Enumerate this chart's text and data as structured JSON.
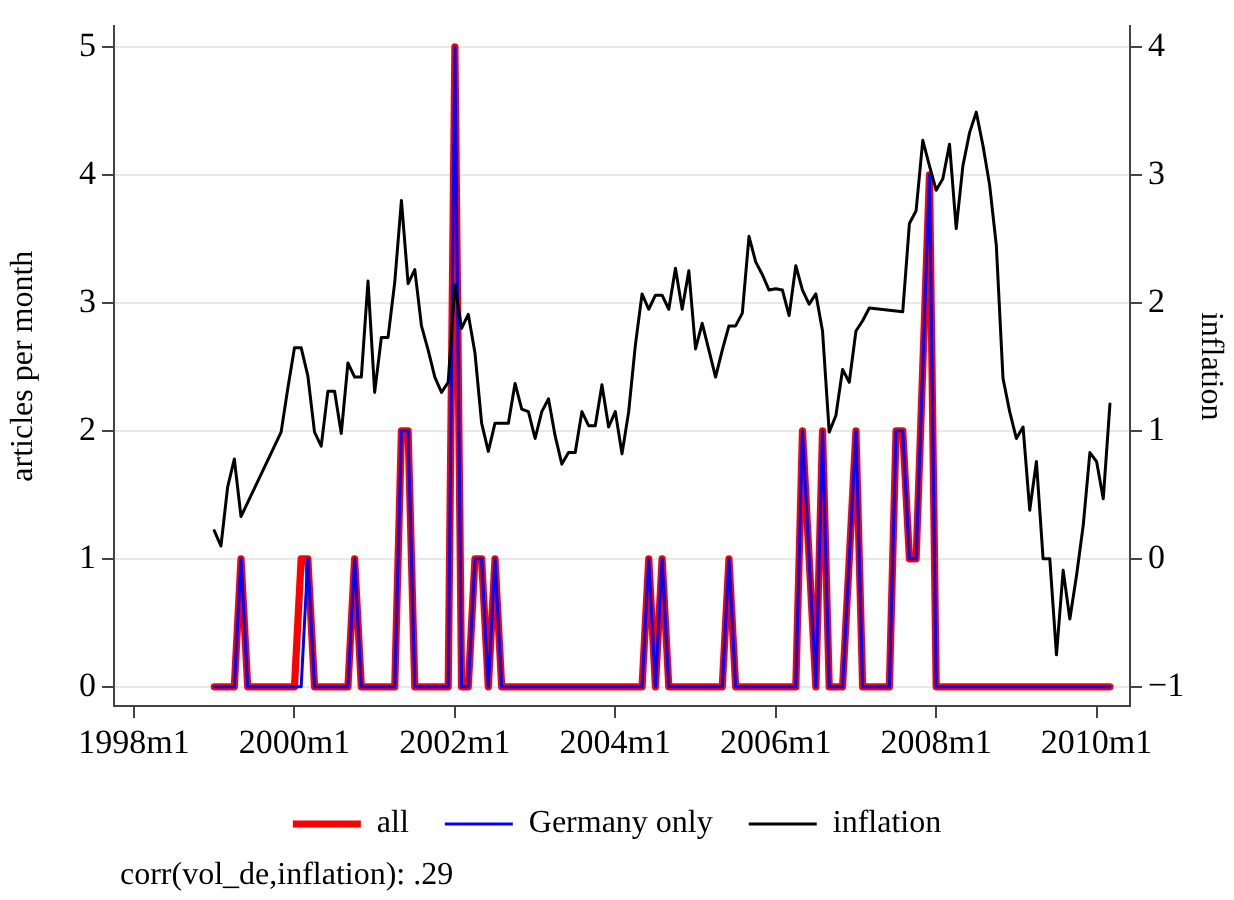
{
  "chart_data": {
    "type": "line",
    "ylabel": "articles per month",
    "y2label": "inflation",
    "x": [
      "1999-01",
      "1999-02",
      "1999-03",
      "1999-04",
      "1999-05",
      "1999-06",
      "1999-07",
      "1999-08",
      "1999-09",
      "1999-10",
      "1999-11",
      "1999-12",
      "2000-01",
      "2000-02",
      "2000-03",
      "2000-04",
      "2000-05",
      "2000-06",
      "2000-07",
      "2000-08",
      "2000-09",
      "2000-10",
      "2000-11",
      "2000-12",
      "2001-01",
      "2001-02",
      "2001-03",
      "2001-04",
      "2001-05",
      "2001-06",
      "2001-07",
      "2001-08",
      "2001-09",
      "2001-10",
      "2001-11",
      "2001-12",
      "2002-01",
      "2002-02",
      "2002-03",
      "2002-04",
      "2002-05",
      "2002-06",
      "2002-07",
      "2002-08",
      "2002-09",
      "2002-10",
      "2002-11",
      "2002-12",
      "2003-01",
      "2003-02",
      "2003-03",
      "2003-04",
      "2003-05",
      "2003-06",
      "2003-07",
      "2003-08",
      "2003-09",
      "2003-10",
      "2003-11",
      "2003-12",
      "2004-01",
      "2004-02",
      "2004-03",
      "2004-04",
      "2004-05",
      "2004-06",
      "2004-07",
      "2004-08",
      "2004-09",
      "2004-10",
      "2004-11",
      "2004-12",
      "2005-01",
      "2005-02",
      "2005-03",
      "2005-04",
      "2005-05",
      "2005-06",
      "2005-07",
      "2005-08",
      "2005-09",
      "2005-10",
      "2005-11",
      "2005-12",
      "2006-01",
      "2006-02",
      "2006-03",
      "2006-04",
      "2006-05",
      "2006-06",
      "2006-07",
      "2006-08",
      "2006-09",
      "2006-10",
      "2006-11",
      "2006-12",
      "2007-01",
      "2007-02",
      "2007-03",
      "2007-04",
      "2007-05",
      "2007-06",
      "2007-07",
      "2007-08",
      "2007-09",
      "2007-10",
      "2007-11",
      "2007-12",
      "2008-01",
      "2008-02",
      "2008-03",
      "2008-04",
      "2008-05",
      "2008-06",
      "2008-07",
      "2008-08",
      "2008-09",
      "2008-10",
      "2008-11",
      "2008-12",
      "2009-01",
      "2009-02",
      "2009-03",
      "2009-04",
      "2009-05",
      "2009-06",
      "2009-07",
      "2009-08",
      "2009-09",
      "2009-10",
      "2009-11",
      "2009-12",
      "2010-01",
      "2010-02",
      "2010-03"
    ],
    "series": [
      {
        "name": "all",
        "color": "#ff0000",
        "values": [
          0,
          0,
          0,
          0,
          1,
          0,
          0,
          0,
          0,
          0,
          0,
          0,
          0,
          1,
          1,
          0,
          0,
          0,
          0,
          0,
          0,
          1,
          0,
          0,
          0,
          0,
          0,
          0,
          2,
          2,
          0,
          0,
          0,
          0,
          0,
          0,
          5,
          0,
          0,
          1,
          1,
          0,
          1,
          0,
          0,
          0,
          0,
          0,
          0,
          0,
          0,
          0,
          0,
          0,
          0,
          0,
          0,
          0,
          0,
          0,
          0,
          0,
          0,
          0,
          0,
          1,
          0,
          1,
          0,
          0,
          0,
          0,
          0,
          0,
          0,
          0,
          0,
          1,
          0,
          0,
          0,
          0,
          0,
          0,
          0,
          0,
          0,
          0,
          2,
          1,
          0,
          2,
          0,
          0,
          0,
          1,
          2,
          0,
          0,
          0,
          0,
          0,
          2,
          2,
          1,
          1,
          2.5,
          4,
          0,
          0,
          0,
          0,
          0,
          0,
          0,
          0,
          0,
          0,
          0,
          0,
          0,
          0,
          0,
          0,
          0,
          0,
          0,
          0,
          0,
          0,
          0,
          0,
          0,
          0,
          0
        ]
      },
      {
        "name": "Germany only",
        "color": "#0000ff",
        "values": [
          0,
          0,
          0,
          0,
          1,
          0,
          0,
          0,
          0,
          0,
          0,
          0,
          0,
          0,
          1,
          0,
          0,
          0,
          0,
          0,
          0,
          1,
          0,
          0,
          0,
          0,
          0,
          0,
          2,
          2,
          0,
          0,
          0,
          0,
          0,
          0,
          5,
          0,
          0,
          1,
          1,
          0,
          1,
          0,
          0,
          0,
          0,
          0,
          0,
          0,
          0,
          0,
          0,
          0,
          0,
          0,
          0,
          0,
          0,
          0,
          0,
          0,
          0,
          0,
          0,
          1,
          0,
          1,
          0,
          0,
          0,
          0,
          0,
          0,
          0,
          0,
          0,
          1,
          0,
          0,
          0,
          0,
          0,
          0,
          0,
          0,
          0,
          0,
          2,
          1,
          0,
          2,
          0,
          0,
          0,
          1,
          2,
          0,
          0,
          0,
          0,
          0,
          2,
          2,
          1,
          1,
          2.5,
          4,
          0,
          0,
          0,
          0,
          0,
          0,
          0,
          0,
          0,
          0,
          0,
          0,
          0,
          0,
          0,
          0,
          0,
          0,
          0,
          0,
          0,
          0,
          0,
          0,
          0,
          0,
          0
        ]
      },
      {
        "name": "inflation",
        "color": "#000000",
        "axis": "y2",
        "x": [
          "1999-01",
          "1999-02",
          "1999-03",
          "1999-04",
          "1999-05",
          "1999-11",
          "1999-12",
          "2000-01",
          "2000-02",
          "2000-03",
          "2000-04",
          "2000-05",
          "2000-06",
          "2000-07",
          "2000-08",
          "2000-09",
          "2000-10",
          "2000-11",
          "2000-12",
          "2001-01",
          "2001-02",
          "2001-03",
          "2001-04",
          "2001-05",
          "2001-06",
          "2001-07",
          "2001-08",
          "2001-09",
          "2001-10",
          "2001-11",
          "2001-12",
          "2002-01",
          "2002-02",
          "2002-03",
          "2002-04",
          "2002-05",
          "2002-06",
          "2002-07",
          "2002-08",
          "2002-09",
          "2002-10",
          "2002-11",
          "2002-12",
          "2003-01",
          "2003-02",
          "2003-03",
          "2003-04",
          "2003-05",
          "2003-06",
          "2003-07",
          "2003-08",
          "2003-09",
          "2003-10",
          "2003-11",
          "2003-12",
          "2004-01",
          "2004-02",
          "2004-03",
          "2004-04",
          "2004-05",
          "2004-06",
          "2004-07",
          "2004-08",
          "2004-09",
          "2004-10",
          "2004-11",
          "2004-12",
          "2005-01",
          "2005-02",
          "2005-03",
          "2005-04",
          "2005-05",
          "2005-06",
          "2005-07",
          "2005-08",
          "2005-09",
          "2005-10",
          "2005-11",
          "2005-12",
          "2006-01",
          "2006-02",
          "2006-03",
          "2006-04",
          "2006-05",
          "2006-06",
          "2006-07",
          "2006-08",
          "2006-09",
          "2006-10",
          "2006-11",
          "2006-12",
          "2007-01",
          "2007-02",
          "2007-03",
          "2007-08",
          "2007-09",
          "2007-10",
          "2007-11",
          "2007-12",
          "2008-01",
          "2008-02",
          "2008-03",
          "2008-04",
          "2008-05",
          "2008-06",
          "2008-07",
          "2008-08",
          "2008-09",
          "2008-10",
          "2008-11",
          "2008-12",
          "2009-01",
          "2009-02",
          "2009-03",
          "2009-04",
          "2009-05",
          "2009-06",
          "2009-07",
          "2009-08",
          "2009-09",
          "2009-10",
          "2009-11",
          "2009-12",
          "2010-01",
          "2010-02",
          "2010-03"
        ],
        "values": [
          0.22,
          0.1,
          0.56,
          0.78,
          0.33,
          0.99,
          1.33,
          1.65,
          1.65,
          1.43,
          0.99,
          0.88,
          1.31,
          1.31,
          0.98,
          1.53,
          1.42,
          1.42,
          2.17,
          1.3,
          1.73,
          1.73,
          2.16,
          2.8,
          2.15,
          2.26,
          1.82,
          1.63,
          1.42,
          1.3,
          1.38,
          2.14,
          1.8,
          1.91,
          1.61,
          1.06,
          0.84,
          1.06,
          1.06,
          1.06,
          1.37,
          1.17,
          1.15,
          0.94,
          1.15,
          1.25,
          0.96,
          0.74,
          0.83,
          0.83,
          1.15,
          1.04,
          1.04,
          1.36,
          1.03,
          1.15,
          0.82,
          1.15,
          1.67,
          2.07,
          1.95,
          2.06,
          2.06,
          1.95,
          2.27,
          1.95,
          2.25,
          1.64,
          1.84,
          1.63,
          1.42,
          1.63,
          1.82,
          1.82,
          1.92,
          2.52,
          2.32,
          2.22,
          2.1,
          2.11,
          2.1,
          1.9,
          2.29,
          2.1,
          1.99,
          2.07,
          1.78,
          0.99,
          1.12,
          1.48,
          1.38,
          1.78,
          1.86,
          1.96,
          1.93,
          2.62,
          2.72,
          3.27,
          3.07,
          2.88,
          2.97,
          3.24,
          2.58,
          3.07,
          3.33,
          3.49,
          3.23,
          2.92,
          2.45,
          1.41,
          1.15,
          0.94,
          1.03,
          0.38,
          0.76,
          0,
          0,
          -0.75,
          -0.09,
          -0.47,
          -0.13,
          0.26,
          0.83,
          0.76,
          0.47,
          1.21
        ]
      }
    ],
    "xlim": [
      "1997-10",
      "2010-06"
    ],
    "xticks": [
      {
        "value": "1998-01",
        "label": "1998m1"
      },
      {
        "value": "2000-01",
        "label": "2000m1"
      },
      {
        "value": "2002-01",
        "label": "2002m1"
      },
      {
        "value": "2004-01",
        "label": "2004m1"
      },
      {
        "value": "2006-01",
        "label": "2006m1"
      },
      {
        "value": "2008-01",
        "label": "2008m1"
      },
      {
        "value": "2010-01",
        "label": "2010m1"
      }
    ],
    "ylim": [
      -0.15,
      5.16
    ],
    "yticks": [
      0,
      1,
      2,
      3,
      4,
      5
    ],
    "y2lim": [
      -1.15,
      4.16
    ],
    "y2ticks": [
      {
        "value": -1,
        "label": "−1"
      },
      0,
      1,
      2,
      3,
      4
    ],
    "grid": "y",
    "legend": "bottom",
    "annotations": [
      "corr(vol_de,inflation): .29"
    ]
  }
}
